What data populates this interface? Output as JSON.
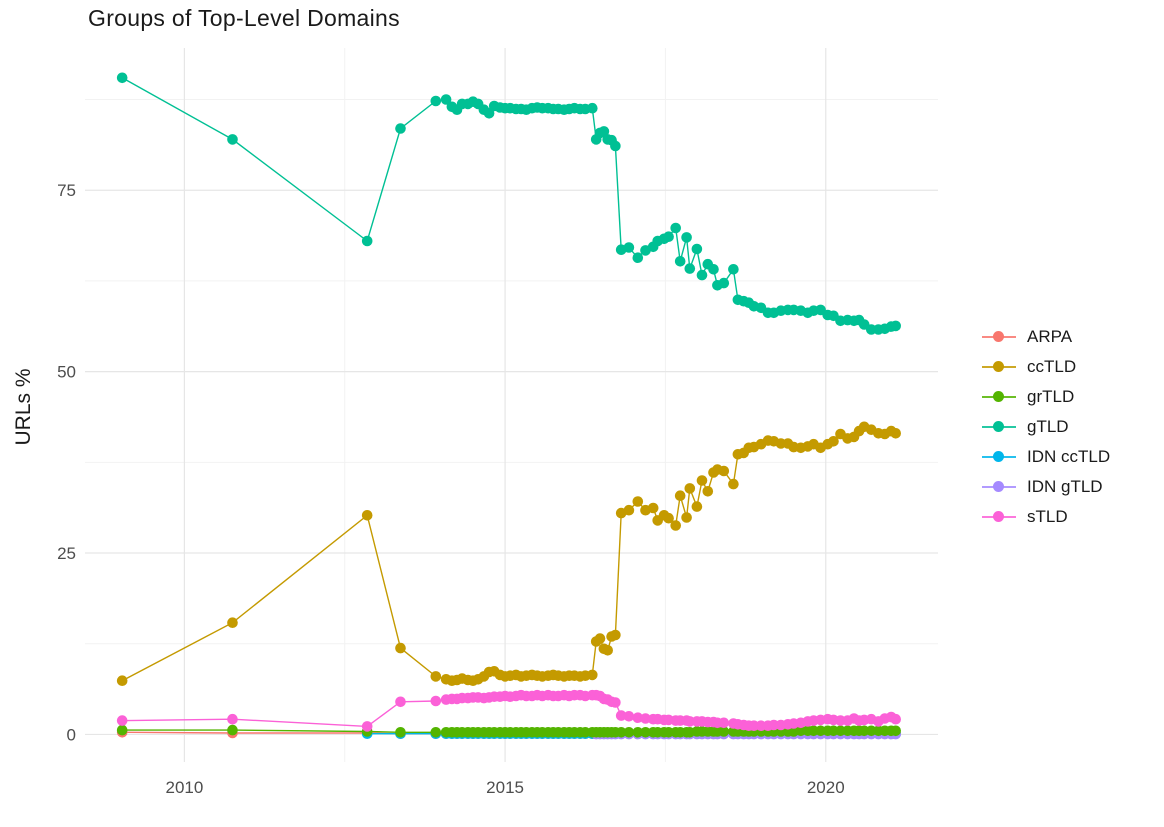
{
  "title": "Groups of Top-Level Domains",
  "y_axis_title": "URLs %",
  "legend": {
    "items": [
      {
        "label": "ARPA",
        "color": "#F8766D"
      },
      {
        "label": "ccTLD",
        "color": "#C49A00"
      },
      {
        "label": "grTLD",
        "color": "#53B400"
      },
      {
        "label": "gTLD",
        "color": "#00C094"
      },
      {
        "label": "IDN ccTLD",
        "color": "#00B6EB"
      },
      {
        "label": "IDN gTLD",
        "color": "#A58AFF"
      },
      {
        "label": "sTLD",
        "color": "#FB61D7"
      }
    ]
  },
  "axes": {
    "x": {
      "ticks": [
        {
          "value": 2010,
          "label": "2010"
        },
        {
          "value": 2015,
          "label": "2015"
        },
        {
          "value": 2020,
          "label": "2020"
        }
      ],
      "minor": [
        2012.5,
        2017.5
      ]
    },
    "y": {
      "ticks": [
        {
          "value": 0,
          "label": "0"
        },
        {
          "value": 25,
          "label": "25"
        },
        {
          "value": 50,
          "label": "50"
        },
        {
          "value": 75,
          "label": "75"
        }
      ],
      "minor": [
        12.5,
        37.5,
        62.5,
        87.5
      ]
    }
  },
  "chart_data": {
    "type": "line",
    "title": "Groups of Top-Level Domains",
    "xlabel": "",
    "ylabel": "URLs %",
    "xlim": [
      2008.45,
      2021.75
    ],
    "ylim": [
      -3.8,
      94.6
    ],
    "grid": true,
    "legend_position": "right",
    "x": [
      2009.03,
      2010.75,
      2012.85,
      2013.37,
      2013.92,
      2014.08,
      2014.17,
      2014.25,
      2014.33,
      2014.42,
      2014.5,
      2014.58,
      2014.67,
      2014.75,
      2014.83,
      2014.92,
      2015.0,
      2015.08,
      2015.17,
      2015.25,
      2015.33,
      2015.42,
      2015.5,
      2015.58,
      2015.67,
      2015.75,
      2015.83,
      2015.92,
      2016.0,
      2016.08,
      2016.17,
      2016.25,
      2016.36,
      2016.42,
      2016.48,
      2016.54,
      2016.6,
      2016.66,
      2016.72,
      2016.81,
      2016.93,
      2017.07,
      2017.19,
      2017.31,
      2017.38,
      2017.48,
      2017.55,
      2017.66,
      2017.73,
      2017.83,
      2017.88,
      2017.99,
      2018.07,
      2018.16,
      2018.25,
      2018.31,
      2018.41,
      2018.56,
      2018.63,
      2018.72,
      2018.8,
      2018.88,
      2018.99,
      2019.1,
      2019.19,
      2019.3,
      2019.41,
      2019.5,
      2019.61,
      2019.72,
      2019.81,
      2019.92,
      2020.03,
      2020.12,
      2020.23,
      2020.34,
      2020.44,
      2020.52,
      2020.6,
      2020.71,
      2020.82,
      2020.92,
      2021.02,
      2021.09
    ],
    "z_order": [
      "ARPA",
      "IDN ccTLD",
      "IDN gTLD",
      "grTLD",
      "sTLD",
      "ccTLD",
      "gTLD"
    ],
    "series": [
      {
        "name": "ARPA",
        "color": "#F8766D",
        "start": 0,
        "y": [
          0.3,
          0.2,
          0.2,
          0.1,
          0.1,
          0.1,
          0.1,
          0.1,
          0.1,
          0.1,
          0.1,
          0.1,
          0.1,
          0.1,
          0.1,
          0.1,
          0.1,
          0.1,
          0.1,
          0.1,
          0.1,
          0.1,
          0.1,
          0.1,
          0.1,
          0.1,
          0.1,
          0.1,
          0.1,
          0.1,
          0.1,
          0.1,
          0.1,
          0.1,
          0.1,
          0.1,
          0.1,
          0.1,
          0.1,
          0.1,
          0.1,
          0.1,
          0.1,
          0.1,
          0.1,
          0.1,
          0.1,
          0.1,
          0.1,
          0.1,
          0.1,
          0.1,
          0.1,
          0.1,
          0.1,
          0.1,
          0.1,
          0.1,
          0.1,
          0.1,
          0.1,
          0.1,
          0.1,
          0.1,
          0.1,
          0.1,
          0.1,
          0.1,
          0.1,
          0.1,
          0.1,
          0.1,
          0.1,
          0.1,
          0.1,
          0.1,
          0.1,
          0.1,
          0.1,
          0.1,
          0.1,
          0.1,
          0.1,
          0.1
        ]
      },
      {
        "name": "ccTLD",
        "color": "#C49A00",
        "start": 0,
        "y": [
          7.4,
          15.4,
          30.2,
          11.9,
          8,
          7.6,
          7.4,
          7.5,
          7.7,
          7.5,
          7.4,
          7.6,
          8,
          8.6,
          8.7,
          8.2,
          8,
          8.1,
          8.2,
          8,
          8.1,
          8.2,
          8.1,
          8,
          8.1,
          8.2,
          8.1,
          8,
          8.1,
          8.1,
          8,
          8.1,
          8.2,
          12.8,
          13.2,
          11.8,
          11.6,
          13.5,
          13.7,
          30.5,
          30.9,
          32.1,
          30.9,
          31.2,
          29.5,
          30.2,
          29.8,
          28.8,
          32.9,
          29.9,
          33.9,
          31.4,
          35,
          33.5,
          36.1,
          36.5,
          36.3,
          34.5,
          38.6,
          38.8,
          39.5,
          39.6,
          40,
          40.5,
          40.4,
          40.1,
          40.1,
          39.6,
          39.5,
          39.7,
          40,
          39.5,
          40,
          40.4,
          41.4,
          40.8,
          41,
          41.8,
          42.4,
          42,
          41.5,
          41.4,
          41.8,
          41.5
        ]
      },
      {
        "name": "grTLD",
        "color": "#53B400",
        "start": 0,
        "y": [
          0.6,
          0.6,
          0.4,
          0.3,
          0.3,
          0.3,
          0.3,
          0.3,
          0.3,
          0.3,
          0.3,
          0.3,
          0.3,
          0.3,
          0.3,
          0.3,
          0.3,
          0.3,
          0.3,
          0.3,
          0.3,
          0.3,
          0.3,
          0.3,
          0.3,
          0.3,
          0.3,
          0.3,
          0.3,
          0.3,
          0.3,
          0.3,
          0.3,
          0.3,
          0.3,
          0.3,
          0.3,
          0.3,
          0.3,
          0.3,
          0.3,
          0.3,
          0.3,
          0.3,
          0.3,
          0.3,
          0.3,
          0.3,
          0.3,
          0.3,
          0.3,
          0.4,
          0.4,
          0.4,
          0.4,
          0.4,
          0.4,
          0.4,
          0.4,
          0.4,
          0.4,
          0.4,
          0.4,
          0.4,
          0.4,
          0.4,
          0.4,
          0.4,
          0.5,
          0.5,
          0.5,
          0.5,
          0.5,
          0.5,
          0.5,
          0.5,
          0.5,
          0.5,
          0.5,
          0.5,
          0.5,
          0.5,
          0.5,
          0.5
        ]
      },
      {
        "name": "gTLD",
        "color": "#00C094",
        "start": 0,
        "y": [
          90.5,
          82,
          68,
          83.5,
          87.3,
          87.5,
          86.5,
          86.1,
          86.9,
          86.9,
          87.2,
          86.9,
          86.1,
          85.6,
          86.6,
          86.4,
          86.3,
          86.3,
          86.2,
          86.2,
          86.1,
          86.3,
          86.4,
          86.3,
          86.3,
          86.2,
          86.2,
          86.1,
          86.2,
          86.3,
          86.2,
          86.2,
          86.3,
          82,
          82.9,
          83.1,
          82,
          81.9,
          81.1,
          66.8,
          67.1,
          65.7,
          66.7,
          67.2,
          68,
          68.3,
          68.6,
          69.8,
          65.2,
          68.5,
          64.2,
          66.9,
          63.3,
          64.8,
          64.1,
          61.9,
          62.2,
          64.1,
          59.9,
          59.7,
          59.5,
          59,
          58.8,
          58.1,
          58.1,
          58.4,
          58.5,
          58.5,
          58.4,
          58.1,
          58.4,
          58.5,
          57.8,
          57.7,
          57,
          57.1,
          57,
          57.1,
          56.5,
          55.8,
          55.8,
          55.9,
          56.2,
          56.3
        ]
      },
      {
        "name": "IDN ccTLD",
        "color": "#00B6EB",
        "start": 2,
        "y": [
          0.1,
          0.1,
          0.1,
          0.1,
          0.1,
          0.1,
          0.1,
          0.1,
          0.1,
          0.1,
          0.1,
          0.1,
          0.1,
          0.1,
          0.1,
          0.1,
          0.1,
          0.1,
          0.1,
          0.1,
          0.1,
          0.1,
          0.1,
          0.1,
          0.1,
          0.1,
          0.1,
          0.1,
          0.1,
          0.1,
          0.1,
          0.1,
          0.1,
          0.1,
          0.1,
          0.1,
          0.1,
          0.1,
          0.1,
          0.1,
          0.1,
          0.1,
          0.1,
          0.1,
          0.1,
          0.1,
          0.1,
          0.1,
          0.1,
          0.1,
          0.1,
          0.1,
          0.1,
          0.1,
          0.1,
          0.1,
          0.1,
          0.1,
          0.1,
          0.1,
          0.1,
          0.1,
          0.1,
          0.1,
          0.1,
          0.1,
          0.1,
          0.1,
          0.1,
          0.1,
          0.1,
          0.1,
          0.1,
          0.1,
          0.1,
          0.1,
          0.1,
          0.1,
          0.1,
          0.1,
          0.1,
          0.1
        ]
      },
      {
        "name": "IDN gTLD",
        "color": "#A58AFF",
        "start": 33,
        "y": [
          0.05,
          0.05,
          0.05,
          0.05,
          0.05,
          0.05,
          0.05,
          0.05,
          0.05,
          0.05,
          0.05,
          0.05,
          0.05,
          0.05,
          0.05,
          0.05,
          0.05,
          0.05,
          0.05,
          0.05,
          0.05,
          0.05,
          0.05,
          0.05,
          0.05,
          0.05,
          0.05,
          0.05,
          0.05,
          0.05,
          0.05,
          0.05,
          0.05,
          0.05,
          0.05,
          0.05,
          0.05,
          0.05,
          0.05,
          0.05,
          0.05,
          0.05,
          0.05,
          0.05,
          0.05,
          0.05,
          0.05,
          0.05,
          0.05,
          0.05,
          0.05
        ]
      },
      {
        "name": "sTLD",
        "color": "#FB61D7",
        "start": 0,
        "y": [
          1.9,
          2.1,
          1.1,
          4.5,
          4.6,
          4.8,
          4.9,
          4.9,
          5,
          5,
          5.1,
          5.1,
          5,
          5.1,
          5.2,
          5.2,
          5.3,
          5.2,
          5.3,
          5.4,
          5.3,
          5.3,
          5.4,
          5.3,
          5.4,
          5.3,
          5.3,
          5.4,
          5.3,
          5.4,
          5.4,
          5.3,
          5.4,
          5.4,
          5.3,
          4.9,
          4.8,
          4.5,
          4.4,
          2.6,
          2.5,
          2.3,
          2.2,
          2.1,
          2.1,
          2,
          2,
          1.9,
          1.9,
          1.9,
          1.8,
          1.8,
          1.8,
          1.7,
          1.7,
          1.6,
          1.6,
          1.5,
          1.4,
          1.3,
          1.2,
          1.2,
          1.2,
          1.2,
          1.3,
          1.3,
          1.4,
          1.5,
          1.6,
          1.8,
          1.9,
          2,
          2.1,
          2,
          1.9,
          1.9,
          2.2,
          1.9,
          2,
          2.1,
          1.8,
          2.2,
          2.4,
          2.1
        ]
      }
    ]
  }
}
